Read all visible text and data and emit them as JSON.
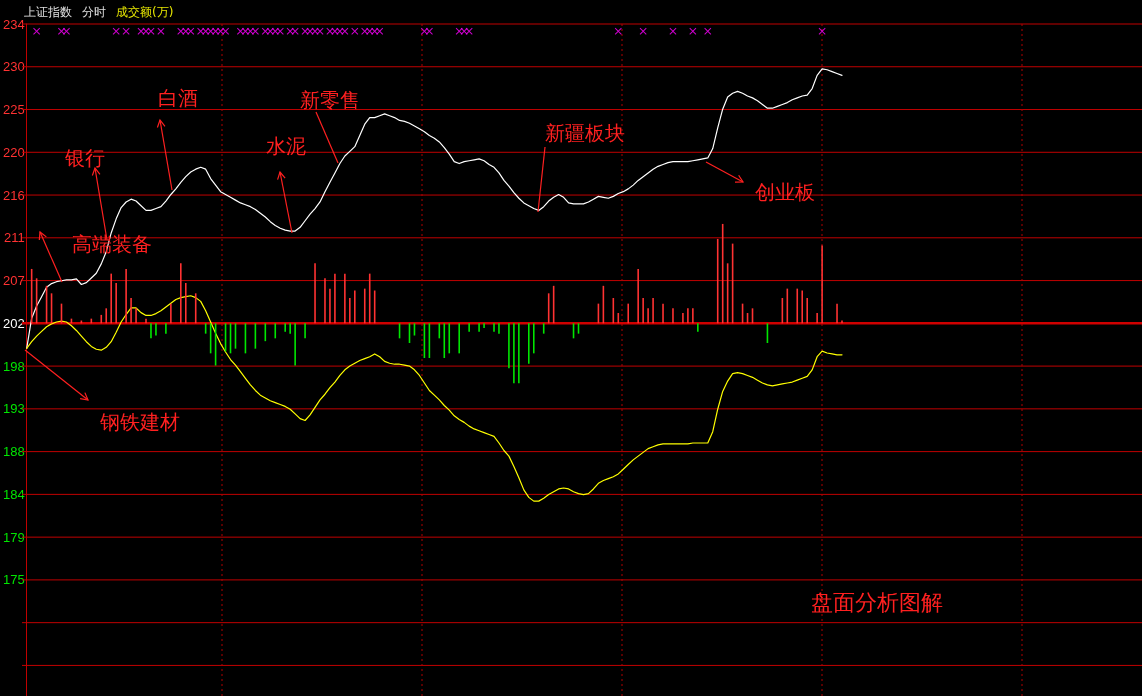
{
  "chart_data": {
    "type": "line",
    "title": "上证指数",
    "subtitle": "分时",
    "annotations": [
      "成交额(万)",
      "盘面分析图解",
      "高端装备",
      "银行",
      "白酒",
      "水泥",
      "新零售",
      "新疆板块",
      "创业板",
      "钢铁建材"
    ],
    "categories": [
      null,
      null,
      null,
      null,
      null,
      null,
      null,
      null,
      null,
      null,
      null,
      null,
      null,
      null,
      null,
      null,
      null,
      null,
      null,
      null,
      null,
      null,
      null,
      null,
      null,
      null,
      null,
      null,
      null,
      null,
      null,
      null,
      null,
      null,
      null,
      null,
      null,
      null,
      null,
      null,
      null,
      null,
      null,
      null,
      null,
      null,
      null,
      null,
      null,
      null,
      null,
      null,
      null,
      null,
      null,
      null,
      null,
      null,
      null,
      null,
      null,
      null,
      null,
      null,
      null,
      null,
      null,
      null,
      null,
      null,
      null,
      null,
      null,
      null,
      null,
      null,
      null,
      null,
      null,
      null,
      null,
      null,
      null,
      null,
      null,
      null,
      null,
      null,
      null,
      null,
      null,
      null,
      null,
      null,
      null,
      null,
      null,
      null,
      null,
      null,
      null,
      null,
      null,
      null,
      null,
      null,
      null,
      null,
      null,
      null,
      null,
      null,
      null,
      null,
      null,
      null,
      null,
      null,
      null,
      null,
      null,
      null,
      null,
      null,
      null,
      null,
      null,
      null,
      null,
      null,
      null,
      null,
      null,
      null,
      null,
      null,
      null,
      null,
      null,
      null,
      null,
      null,
      null,
      null,
      null,
      null,
      null,
      null,
      null,
      null,
      null,
      null,
      null,
      null,
      null,
      null,
      null,
      null,
      null,
      null,
      null,
      null,
      null,
      null,
      null
    ],
    "ylim": [
      162.42,
      234.08
    ],
    "yticks": [
      {
        "value": 165.68,
        "label": null
      },
      {
        "value": 170.24,
        "label": null
      },
      {
        "value": 174.8,
        "label": "175"
      },
      {
        "value": 179.36,
        "label": "179"
      },
      {
        "value": 183.92,
        "label": "184"
      },
      {
        "value": 188.48,
        "label": "188"
      },
      {
        "value": 193.04,
        "label": "193"
      },
      {
        "value": 197.6,
        "label": "198"
      },
      {
        "value": 202.16,
        "label": "202"
      },
      {
        "value": 206.72,
        "label": "207"
      },
      {
        "value": 211.28,
        "label": "211"
      },
      {
        "value": 215.84,
        "label": "216"
      },
      {
        "value": 220.4,
        "label": "220"
      },
      {
        "value": 224.96,
        "label": "225"
      },
      {
        "value": 229.52,
        "label": "230"
      },
      {
        "value": 234.08,
        "label": "234"
      }
    ],
    "ref_lines": [
      {
        "axis": "y",
        "value": 202.16,
        "color": "#d00000"
      }
    ],
    "tick_labels": "y",
    "grid": true,
    "marker": "none",
    "line_style": "solid",
    "series": [
      {
        "color": "#ffffff",
        "values": [
          199.5,
          202.7,
          204.0,
          205.0,
          206.0,
          206.4,
          206.6,
          206.7,
          206.8,
          206.8,
          206.9,
          206.3,
          206.5,
          207.0,
          207.5,
          208.5,
          209.8,
          211.8,
          213.3,
          214.5,
          215.1,
          215.4,
          215.2,
          214.7,
          214.2,
          214.2,
          214.4,
          214.6,
          215.2,
          215.9,
          216.5,
          217.2,
          217.8,
          218.3,
          218.6,
          218.8,
          218.6,
          217.6,
          216.9,
          216.2,
          215.9,
          215.6,
          215.3,
          215.0,
          214.8,
          214.6,
          214.3,
          213.9,
          213.5,
          213.0,
          212.6,
          212.3,
          212.1,
          212.0,
          212.0,
          212.4,
          213.1,
          213.8,
          214.4,
          215.1,
          216.2,
          217.2,
          218.2,
          219.2,
          220.0,
          220.5,
          221.0,
          222.2,
          223.4,
          224.1,
          224.1,
          224.3,
          224.5,
          224.3,
          224.1,
          223.8,
          223.7,
          223.5,
          223.2,
          222.9,
          222.6,
          222.2,
          221.9,
          221.5,
          220.9,
          220.2,
          219.4,
          219.2,
          219.4,
          219.5,
          219.6,
          219.7,
          219.5,
          219.1,
          218.8,
          218.2,
          217.4,
          216.8,
          216.1,
          215.5,
          215.0,
          214.7,
          214.4,
          214.2,
          214.6,
          215.2,
          215.6,
          215.9,
          215.6,
          215.0,
          214.9,
          214.9,
          214.9,
          215.1,
          215.4,
          215.7,
          215.6,
          215.5,
          215.7,
          216.0,
          216.2,
          216.5,
          216.9,
          217.4,
          217.8,
          218.2,
          218.6,
          218.9,
          219.1,
          219.3,
          219.4,
          219.4,
          219.4,
          219.4,
          219.5,
          219.6,
          219.7,
          219.8,
          220.8,
          223.0,
          225.0,
          226.3,
          226.7,
          226.9,
          226.7,
          226.4,
          226.2,
          225.9,
          225.5,
          225.1,
          225.1,
          225.3,
          225.5,
          225.7,
          226.0,
          226.2,
          226.4,
          226.5,
          227.2,
          228.6,
          229.3,
          229.2,
          229.0,
          228.8,
          228.6
        ]
      },
      {
        "color": "#ffff00",
        "values": [
          199.5,
          200.2,
          200.8,
          201.3,
          201.8,
          202.1,
          202.3,
          202.4,
          202.3,
          201.9,
          201.4,
          200.8,
          200.2,
          199.7,
          199.4,
          199.3,
          199.6,
          200.2,
          201.2,
          202.3,
          203.1,
          203.8,
          203.8,
          203.3,
          203.0,
          203.0,
          203.2,
          203.5,
          203.9,
          204.3,
          204.7,
          204.9,
          205.0,
          205.1,
          204.9,
          204.5,
          203.5,
          202.3,
          201.1,
          200.0,
          199.1,
          198.3,
          197.7,
          197.0,
          196.3,
          195.6,
          195.0,
          194.5,
          194.2,
          193.9,
          193.7,
          193.5,
          193.3,
          193.0,
          192.5,
          192.0,
          191.8,
          192.4,
          193.2,
          194.0,
          194.6,
          195.3,
          195.9,
          196.6,
          197.2,
          197.6,
          197.9,
          198.2,
          198.4,
          198.6,
          198.9,
          198.6,
          198.1,
          197.9,
          197.8,
          197.8,
          197.7,
          197.6,
          197.2,
          196.6,
          195.8,
          195.0,
          194.5,
          194.0,
          193.4,
          192.9,
          192.3,
          191.9,
          191.6,
          191.2,
          190.9,
          190.7,
          190.5,
          190.3,
          190.1,
          189.4,
          188.6,
          188.0,
          186.9,
          185.7,
          184.4,
          183.6,
          183.2,
          183.2,
          183.5,
          183.9,
          184.2,
          184.5,
          184.6,
          184.5,
          184.2,
          184.0,
          183.9,
          184.0,
          184.5,
          185.1,
          185.4,
          185.6,
          185.8,
          186.1,
          186.6,
          187.1,
          187.6,
          188.0,
          188.4,
          188.8,
          189.0,
          189.2,
          189.3,
          189.3,
          189.3,
          189.3,
          189.3,
          189.3,
          189.4,
          189.4,
          189.4,
          189.4,
          190.6,
          193.0,
          194.9,
          196.0,
          196.8,
          196.9,
          196.8,
          196.6,
          196.4,
          196.1,
          195.8,
          195.6,
          195.5,
          195.6,
          195.7,
          195.8,
          195.9,
          196.1,
          196.3,
          196.5,
          197.2,
          198.6,
          199.2,
          199.0,
          198.9,
          198.8,
          198.8
        ]
      },
      {
        "type": "bar",
        "color": "#ff3232",
        "values": [
          null,
          5.8,
          4.8,
          null,
          4.0,
          3.2,
          null,
          2.1,
          null,
          0.5,
          null,
          0.3,
          null,
          0.5,
          null,
          0.9,
          1.6,
          5.3,
          4.3,
          null,
          5.8,
          2.7,
          1.6,
          null,
          0.5,
          null,
          null,
          null,
          null,
          2.1,
          null,
          6.4,
          4.3,
          null,
          3.2,
          null,
          null,
          null,
          null,
          null,
          null,
          null,
          null,
          null,
          null,
          null,
          null,
          null,
          null,
          null,
          null,
          null,
          null,
          null,
          null,
          null,
          null,
          null,
          6.4,
          null,
          4.8,
          3.7,
          5.3,
          null,
          5.3,
          2.7,
          3.5,
          null,
          3.7,
          5.3,
          3.5,
          null,
          null,
          null,
          null,
          null,
          null,
          null,
          null,
          null,
          null,
          null,
          null,
          null,
          null,
          null,
          null,
          null,
          null,
          null,
          null,
          null,
          null,
          null,
          null,
          null,
          null,
          null,
          null,
          null,
          null,
          null,
          null,
          null,
          null,
          3.2,
          4.0,
          null,
          null,
          null,
          null,
          null,
          null,
          null,
          null,
          2.1,
          4.0,
          null,
          2.7,
          1.1,
          null,
          2.1,
          null,
          5.8,
          2.7,
          1.6,
          2.7,
          null,
          2.1,
          null,
          1.6,
          null,
          1.1,
          1.6,
          1.6,
          null,
          null,
          null,
          null,
          9.0,
          10.6,
          6.4,
          8.5,
          null,
          2.1,
          1.1,
          1.6,
          null,
          null,
          null,
          null,
          null,
          2.7,
          3.7,
          null,
          3.7,
          3.5,
          2.7,
          null,
          1.1,
          8.3,
          null,
          null,
          2.1,
          0.3
        ],
        "base": [
          null,
          202.16,
          202.16,
          null,
          202.16,
          202.16,
          null,
          202.16,
          null,
          202.16,
          null,
          202.16,
          null,
          202.16,
          null,
          202.16,
          202.16,
          202.16,
          202.16,
          null,
          202.16,
          202.16,
          202.16,
          null,
          202.16,
          null,
          null,
          null,
          null,
          202.16,
          null,
          202.16,
          202.16,
          null,
          202.16,
          null,
          null,
          null,
          null,
          null,
          null,
          null,
          null,
          null,
          null,
          null,
          null,
          null,
          null,
          null,
          null,
          null,
          null,
          null,
          null,
          null,
          null,
          null,
          202.16,
          null,
          202.16,
          202.16,
          202.16,
          null,
          202.16,
          202.16,
          202.16,
          null,
          202.16,
          202.16,
          202.16,
          null,
          null,
          null,
          null,
          null,
          null,
          null,
          null,
          null,
          null,
          null,
          null,
          null,
          null,
          null,
          null,
          null,
          null,
          null,
          null,
          null,
          null,
          null,
          null,
          null,
          null,
          null,
          null,
          null,
          null,
          null,
          null,
          null,
          null,
          202.16,
          202.16,
          null,
          null,
          null,
          null,
          null,
          null,
          null,
          null,
          202.16,
          202.16,
          null,
          202.16,
          202.16,
          null,
          202.16,
          null,
          202.16,
          202.16,
          202.16,
          202.16,
          null,
          202.16,
          null,
          202.16,
          null,
          202.16,
          202.16,
          202.16,
          null,
          null,
          null,
          null,
          202.16,
          202.16,
          202.16,
          202.16,
          null,
          202.16,
          202.16,
          202.16,
          null,
          null,
          null,
          null,
          null,
          202.16,
          202.16,
          null,
          202.16,
          202.16,
          202.16,
          null,
          202.16,
          202.16,
          null,
          null,
          202.16,
          202.16
        ]
      },
      {
        "type": "bar",
        "color": "#00e600",
        "values": [
          null,
          null,
          null,
          null,
          null,
          null,
          null,
          null,
          null,
          null,
          null,
          null,
          null,
          null,
          null,
          null,
          null,
          null,
          null,
          null,
          null,
          null,
          null,
          null,
          null,
          -1.6,
          -1.3,
          null,
          -1.1,
          null,
          null,
          null,
          null,
          null,
          null,
          null,
          -1.1,
          -3.2,
          -4.5,
          null,
          -3.0,
          -3.2,
          -2.7,
          null,
          -3.2,
          null,
          -2.7,
          null,
          -1.9,
          null,
          -1.6,
          null,
          -0.9,
          -1.1,
          -4.5,
          null,
          -1.6,
          null,
          null,
          null,
          null,
          null,
          null,
          null,
          null,
          null,
          null,
          null,
          null,
          null,
          null,
          null,
          null,
          null,
          null,
          -1.6,
          null,
          -2.1,
          -1.3,
          null,
          -3.7,
          -3.7,
          null,
          -1.6,
          -3.7,
          -3.2,
          null,
          -3.2,
          null,
          -0.9,
          null,
          -0.9,
          -0.5,
          null,
          -0.9,
          -1.1,
          null,
          -4.8,
          -6.4,
          -6.4,
          null,
          -4.3,
          -3.2,
          null,
          -1.1,
          null,
          null,
          null,
          null,
          null,
          -1.6,
          -1.1,
          null,
          null,
          null,
          null,
          null,
          null,
          null,
          null,
          null,
          null,
          null,
          null,
          null,
          null,
          null,
          null,
          null,
          null,
          null,
          null,
          null,
          null,
          null,
          -0.9,
          null,
          null,
          null,
          null,
          null,
          null,
          null,
          null,
          null,
          null,
          null,
          null,
          null,
          -2.1,
          null,
          null,
          null,
          null,
          null,
          null,
          null,
          null,
          null,
          null,
          null,
          null,
          null,
          null,
          null
        ],
        "base": [
          null,
          null,
          null,
          null,
          null,
          null,
          null,
          null,
          null,
          null,
          null,
          null,
          null,
          null,
          null,
          null,
          null,
          null,
          null,
          null,
          null,
          null,
          null,
          null,
          null,
          202.16,
          202.16,
          null,
          202.16,
          null,
          null,
          null,
          null,
          null,
          null,
          null,
          202.16,
          202.16,
          202.16,
          null,
          202.16,
          202.16,
          202.16,
          null,
          202.16,
          null,
          202.16,
          null,
          202.16,
          null,
          202.16,
          null,
          202.16,
          202.16,
          202.16,
          null,
          202.16,
          null,
          null,
          null,
          null,
          null,
          null,
          null,
          null,
          null,
          null,
          null,
          null,
          null,
          null,
          null,
          null,
          null,
          null,
          202.16,
          null,
          202.16,
          202.16,
          null,
          202.16,
          202.16,
          null,
          202.16,
          202.16,
          202.16,
          null,
          202.16,
          null,
          202.16,
          null,
          202.16,
          202.16,
          null,
          202.16,
          202.16,
          null,
          202.16,
          202.16,
          202.16,
          null,
          202.16,
          202.16,
          null,
          202.16,
          null,
          null,
          null,
          null,
          null,
          202.16,
          202.16,
          null,
          null,
          null,
          null,
          null,
          null,
          null,
          null,
          null,
          null,
          null,
          null,
          null,
          null,
          null,
          null,
          null,
          null,
          null,
          null,
          null,
          null,
          null,
          202.16,
          null,
          null,
          null,
          null,
          null,
          null,
          null,
          null,
          null,
          null,
          null,
          null,
          null,
          202.16,
          null,
          null,
          null,
          null,
          null,
          null,
          null,
          null,
          null,
          null,
          null,
          null,
          null,
          null,
          null
        ]
      },
      {
        "type": "scatter",
        "marker": "cross",
        "color": "#ff00ff",
        "values": [
          null,
          null,
          233.3,
          null,
          null,
          null,
          null,
          233.3,
          233.3,
          null,
          null,
          null,
          null,
          null,
          null,
          null,
          null,
          null,
          233.3,
          null,
          233.3,
          null,
          null,
          233.3,
          233.3,
          233.3,
          null,
          233.3,
          null,
          null,
          null,
          233.3,
          233.3,
          233.3,
          null,
          233.3,
          233.3,
          233.3,
          233.3,
          233.3,
          233.3,
          null,
          null,
          233.3,
          233.3,
          233.3,
          233.3,
          null,
          233.3,
          233.3,
          233.3,
          233.3,
          null,
          233.3,
          233.3,
          null,
          233.3,
          233.3,
          233.3,
          233.3,
          null,
          233.3,
          233.3,
          233.3,
          233.3,
          null,
          233.3,
          null,
          233.3,
          233.3,
          233.3,
          233.3,
          null,
          null,
          null,
          null,
          null,
          null,
          null,
          null,
          233.3,
          233.3,
          null,
          null,
          null,
          null,
          null,
          233.3,
          233.3,
          233.3,
          null,
          null,
          null,
          null,
          null,
          null,
          null,
          null,
          null,
          null,
          null,
          null,
          null,
          null,
          null,
          null,
          null,
          null,
          null,
          null,
          null,
          null,
          null,
          null,
          null,
          null,
          null,
          null,
          null,
          233.3,
          null,
          null,
          null,
          null,
          233.3,
          null,
          null,
          null,
          null,
          null,
          233.3,
          null,
          null,
          null,
          233.3,
          null,
          null,
          233.3,
          null,
          null,
          null,
          null,
          null,
          null,
          null,
          null,
          null,
          null,
          null,
          null,
          null,
          null,
          null,
          null,
          null,
          null,
          null,
          null,
          null,
          null,
          233.3,
          null,
          null,
          null,
          null
        ]
      }
    ]
  }
}
